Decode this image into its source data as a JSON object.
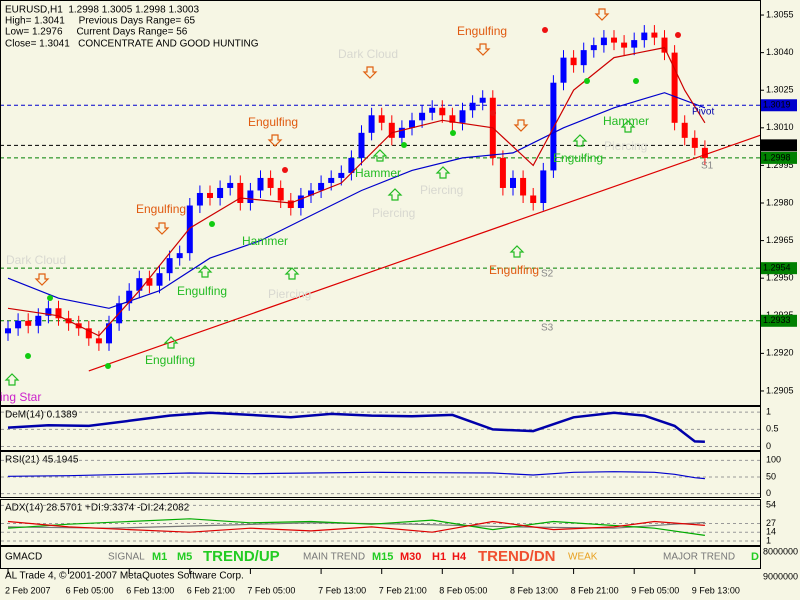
{
  "header": {
    "lines": [
      "EURUSD,H1  1.2998 1.3005 1.2998 1.3003",
      "High= 1.3041     Previous Days Range= 65",
      "Low= 1.2976     Current Days Range= 56",
      "Close= 1.3041   CONCENTRATE AND GOOD HUNTING"
    ]
  },
  "chart_data": [
    {
      "type": "candlestick",
      "up_color": "#0000ff",
      "down_color": "#ff0000",
      "ylim": [
        1.28994,
        1.3061
      ],
      "yticks": [
        1.3055,
        {
          "value": 1.304,
          "label": "1.3040"
        },
        1.3025,
        {
          "value": 1.301,
          "label": "1.3010"
        },
        1.2995,
        {
          "value": 1.298,
          "label": "1.2980"
        },
        1.2965,
        {
          "value": 1.295,
          "label": "1.2950"
        },
        1.2935,
        {
          "value": 1.292,
          "label": "1.2920"
        },
        1.2905
      ],
      "xticks": [
        {
          "value": 0,
          "label": "2 Feb 2007"
        },
        {
          "value": 6,
          "label": "6 Feb 05:00"
        },
        {
          "value": 12,
          "label": "6 Feb 13:00"
        },
        {
          "value": 18,
          "label": "6 Feb 21:00"
        },
        {
          "value": 24,
          "label": "7 Feb 05:00"
        },
        {
          "value": 31,
          "label": "7 Feb 13:00"
        },
        {
          "value": 37,
          "label": "7 Feb 21:00"
        },
        {
          "value": 43,
          "label": "8 Feb 05:00"
        },
        {
          "value": 50,
          "label": "8 Feb 13:00"
        },
        {
          "value": 56,
          "label": "8 Feb 21:00"
        },
        {
          "value": 62,
          "label": "9 Feb 05:00"
        },
        {
          "value": 68,
          "label": "9 Feb 13:00"
        }
      ],
      "open": [
        1.2928,
        1.293,
        1.2933,
        1.2931,
        1.2935,
        1.2938,
        1.2934,
        1.2932,
        1.293,
        1.2926,
        1.2924,
        1.2932,
        1.294,
        1.2945,
        1.295,
        1.2947,
        1.2952,
        1.2958,
        1.296,
        1.2979,
        1.2984,
        1.2982,
        1.2986,
        1.2988,
        1.298,
        1.2985,
        1.299,
        1.2986,
        1.2981,
        1.2978,
        1.2983,
        1.2985,
        1.2988,
        1.299,
        1.2992,
        1.2998,
        1.3008,
        1.3015,
        1.3012,
        1.3006,
        1.301,
        1.3013,
        1.3016,
        1.3018,
        1.3015,
        1.3012,
        1.3017,
        1.302,
        1.3022,
        1.2998,
        1.2986,
        1.299,
        1.2983,
        1.298,
        1.2993,
        1.3028,
        1.3038,
        1.3035,
        1.3041,
        1.3043,
        1.3046,
        1.3044,
        1.3042,
        1.3045,
        1.3048,
        1.3046,
        1.304,
        1.3012,
        1.3006,
        1.3002
      ],
      "high": [
        1.2933,
        1.2936,
        1.2936,
        1.2938,
        1.2941,
        1.2941,
        1.2937,
        1.2935,
        1.2933,
        1.2929,
        1.2935,
        1.2943,
        1.2948,
        1.2953,
        1.2953,
        1.2955,
        1.2961,
        1.2963,
        1.2982,
        1.2987,
        1.2987,
        1.2989,
        1.2991,
        1.2991,
        1.2988,
        1.2993,
        1.2993,
        1.2989,
        1.2984,
        1.2986,
        1.2988,
        1.2991,
        1.2993,
        1.2995,
        1.3001,
        1.3011,
        1.3018,
        1.3018,
        1.3015,
        1.3013,
        1.3016,
        1.3019,
        1.3021,
        1.3021,
        1.3018,
        1.302,
        1.3023,
        1.3025,
        1.3025,
        1.3001,
        1.2993,
        1.2993,
        1.2986,
        1.2996,
        1.3031,
        1.3041,
        1.3041,
        1.3044,
        1.3046,
        1.3049,
        1.3049,
        1.3047,
        1.3048,
        1.3051,
        1.3051,
        1.3049,
        1.3043,
        1.3015,
        1.3009,
        1.3005
      ],
      "low": [
        1.2925,
        1.2927,
        1.2928,
        1.2928,
        1.2932,
        1.2931,
        1.2929,
        1.2927,
        1.2923,
        1.2921,
        1.2921,
        1.2929,
        1.2937,
        1.2942,
        1.2944,
        1.2944,
        1.2949,
        1.2955,
        1.2957,
        1.2976,
        1.2979,
        1.2979,
        1.2983,
        1.2977,
        1.2977,
        1.2982,
        1.2983,
        1.2978,
        1.2975,
        1.2975,
        1.298,
        1.2982,
        1.2985,
        1.2987,
        1.2989,
        1.2995,
        1.3005,
        1.3009,
        1.3003,
        1.3003,
        1.3007,
        1.301,
        1.3013,
        1.3012,
        1.3009,
        1.3009,
        1.3014,
        1.3017,
        1.2995,
        1.2983,
        1.2983,
        1.298,
        1.2977,
        1.2977,
        1.299,
        1.3025,
        1.3032,
        1.3032,
        1.3038,
        1.304,
        1.3041,
        1.3039,
        1.3039,
        1.3042,
        1.3043,
        1.3037,
        1.3009,
        1.3003,
        1.2999,
        1.2995
      ],
      "close": [
        1.293,
        1.2933,
        1.2931,
        1.2935,
        1.2938,
        1.2934,
        1.2932,
        1.293,
        1.2926,
        1.2924,
        1.2932,
        1.294,
        1.2945,
        1.295,
        1.2947,
        1.2952,
        1.2958,
        1.296,
        1.2979,
        1.2984,
        1.2982,
        1.2986,
        1.2988,
        1.298,
        1.2985,
        1.299,
        1.2986,
        1.2981,
        1.2978,
        1.2983,
        1.2985,
        1.2988,
        1.299,
        1.2992,
        1.2998,
        1.3008,
        1.3015,
        1.3012,
        1.3006,
        1.301,
        1.3013,
        1.3016,
        1.3018,
        1.3015,
        1.3012,
        1.3017,
        1.302,
        1.3022,
        1.2998,
        1.2986,
        1.299,
        1.2983,
        1.298,
        1.2993,
        1.3028,
        1.3038,
        1.3035,
        1.3041,
        1.3043,
        1.3046,
        1.3044,
        1.3042,
        1.3045,
        1.3048,
        1.3046,
        1.304,
        1.3012,
        1.3006,
        1.3002,
        1.2998
      ],
      "series": [
        {
          "color": "#0000cc",
          "x": [
            0,
            5,
            10,
            15,
            20,
            25,
            30,
            35,
            40,
            45,
            50,
            55,
            60,
            65,
            69
          ],
          "values": [
            1.295,
            1.2942,
            1.2938,
            1.2945,
            1.2958,
            1.2965,
            1.2975,
            1.2985,
            1.2993,
            1.2998,
            1.3,
            1.301,
            1.3018,
            1.3024,
            1.3018
          ]
        },
        {
          "color": "#cc0000",
          "x": [
            0,
            5,
            9,
            13,
            18,
            23,
            28,
            33,
            38,
            43,
            48,
            52,
            56,
            60,
            65,
            67,
            69
          ],
          "values": [
            1.2938,
            1.2935,
            1.2927,
            1.2945,
            1.297,
            1.2982,
            1.298,
            1.2988,
            1.3008,
            1.3013,
            1.301,
            1.2995,
            1.3025,
            1.3038,
            1.3042,
            1.3025,
            1.3012
          ]
        },
        {
          "color": "#dd0000",
          "x": [
            8,
            78
          ],
          "values": [
            1.2913,
            1.3012
          ]
        }
      ],
      "levels": [
        {
          "value": 1.3019,
          "color": "#0000cc"
        },
        {
          "value": 1.3003,
          "color": "#000000"
        },
        {
          "value": 1.2998,
          "color": "#008000"
        },
        {
          "value": 1.2954,
          "color": "#008000"
        },
        {
          "value": 1.2933,
          "color": "#008000"
        }
      ],
      "annotations": [
        "Dark Cloud",
        "Engulfing",
        "Engulfing",
        "Engulfing",
        "Dark Cloud",
        "Engulfing",
        "Hammer",
        "Hammer",
        "Piercing",
        "Piercing",
        "Engulfing",
        "Engulfing",
        "Engulfing",
        "Hammer",
        "Piercing",
        "Piercing",
        "ing Star",
        "Pivot",
        "S1",
        "S2",
        "S3"
      ]
    },
    {
      "type": "line",
      "title": "DeM(14) 0.1389",
      "ylim": [
        -0.1,
        1.15
      ],
      "yticks": [
        0,
        0.5,
        1
      ],
      "grid": true,
      "series": [
        {
          "color": "#0000aa",
          "x": [
            0,
            4,
            8,
            12,
            16,
            20,
            24,
            28,
            32,
            36,
            40,
            44,
            48,
            52,
            56,
            60,
            63,
            66,
            68,
            69
          ],
          "values": [
            0.55,
            0.62,
            0.6,
            0.75,
            0.9,
            0.98,
            0.92,
            0.85,
            0.95,
            0.9,
            0.88,
            0.92,
            0.5,
            0.45,
            0.85,
            0.98,
            0.9,
            0.6,
            0.15,
            0.1389
          ]
        }
      ]
    },
    {
      "type": "line",
      "title": "RSI(21) 45.1945",
      "ylim": [
        -10,
        125
      ],
      "yticks": [
        0,
        50,
        100
      ],
      "grid": true,
      "series": [
        {
          "color": "#0000cc",
          "x": [
            0,
            6,
            12,
            18,
            24,
            30,
            36,
            42,
            48,
            52,
            56,
            60,
            64,
            66,
            68,
            69
          ],
          "values": [
            52,
            54,
            58,
            62,
            60,
            62,
            64,
            63,
            62,
            56,
            64,
            66,
            64,
            58,
            48,
            45.1945
          ]
        }
      ]
    },
    {
      "type": "line",
      "title": "ADX(14) 28.5701 +DI:9.3374 -DI:24.2082",
      "ylim": [
        -5,
        62
      ],
      "yticks": [
        1,
        14,
        27,
        54
      ],
      "grid": true,
      "series": [
        {
          "color": "#777777",
          "x": [
            0,
            10,
            20,
            30,
            40,
            50,
            60,
            66,
            69
          ],
          "values": [
            22,
            20,
            24,
            28,
            26,
            22,
            20,
            26,
            28.5701
          ]
        },
        {
          "color": "#00aa00",
          "x": [
            0,
            6,
            12,
            18,
            24,
            30,
            36,
            42,
            48,
            54,
            60,
            64,
            69
          ],
          "values": [
            20,
            26,
            30,
            34,
            28,
            30,
            26,
            32,
            18,
            30,
            24,
            20,
            9.3374
          ]
        },
        {
          "color": "#dd0000",
          "x": [
            0,
            6,
            12,
            18,
            24,
            30,
            36,
            42,
            48,
            54,
            60,
            64,
            69
          ],
          "values": [
            30,
            22,
            18,
            14,
            20,
            16,
            22,
            14,
            30,
            18,
            22,
            30,
            24.2082
          ]
        }
      ]
    }
  ],
  "gmacd": {
    "title": "GMACD",
    "signal": "SIGNAL",
    "m1": "M1",
    "m5": "M5",
    "trend_up": "TREND/UP",
    "main_trend": "MAIN TREND",
    "m15": "M15",
    "m30": "M30",
    "h1": "H1",
    "h4": "H4",
    "trend_dn": "TREND/DN",
    "weak": "WEAK",
    "major_trend": "MAJOR TREND",
    "d": "D",
    "axis_labels": [
      8000000,
      9000000
    ]
  },
  "footer": "AL Trade 4, © 2001-2007 MetaQuotes Software Corp."
}
